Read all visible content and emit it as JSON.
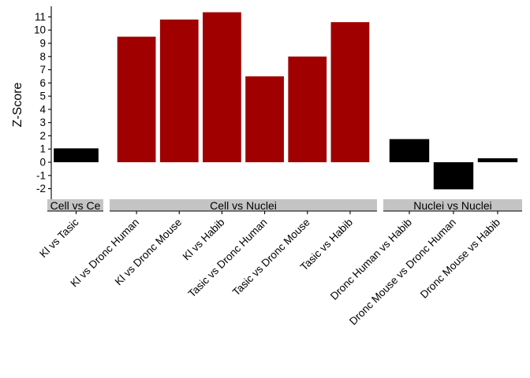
{
  "chart_data": {
    "type": "bar",
    "title": "",
    "xlabel": "",
    "ylabel": "Z-Score",
    "ylim": [
      -2.8,
      11.8
    ],
    "yticks": [
      -2,
      -1,
      0,
      1,
      2,
      3,
      4,
      5,
      6,
      7,
      8,
      9,
      10,
      11
    ],
    "grid": false,
    "legend": "none",
    "positive_color": "#a00000",
    "negative_color": "#000000",
    "facet_strip_color": "#c4c4c4",
    "facets": [
      {
        "label": "Cell vs Ce",
        "categories": [
          "Kl vs Tasic"
        ],
        "values": [
          1.05
        ],
        "colors": [
          "#000000"
        ]
      },
      {
        "label": "Cell vs Nuclei",
        "categories": [
          "Kl vs Dronc Human",
          "Kl vs Dronc Mouse",
          "Kl vs Habib",
          "Tasic vs Dronc Human",
          "Tasic vs Dronc Mouse",
          "Tasic vs Habib"
        ],
        "values": [
          9.5,
          10.8,
          11.35,
          6.5,
          8.0,
          10.6
        ],
        "colors": [
          "#a00000",
          "#a00000",
          "#a00000",
          "#a00000",
          "#a00000",
          "#a00000"
        ]
      },
      {
        "label": "Nuclei vs Nuclei",
        "categories": [
          "Dronc Human vs Habib",
          "Dronc Mouse vs Dronc Human",
          "Dronc Mouse vs Habib"
        ],
        "values": [
          1.75,
          -2.05,
          0.3
        ],
        "colors": [
          "#000000",
          "#000000",
          "#000000"
        ]
      }
    ]
  }
}
